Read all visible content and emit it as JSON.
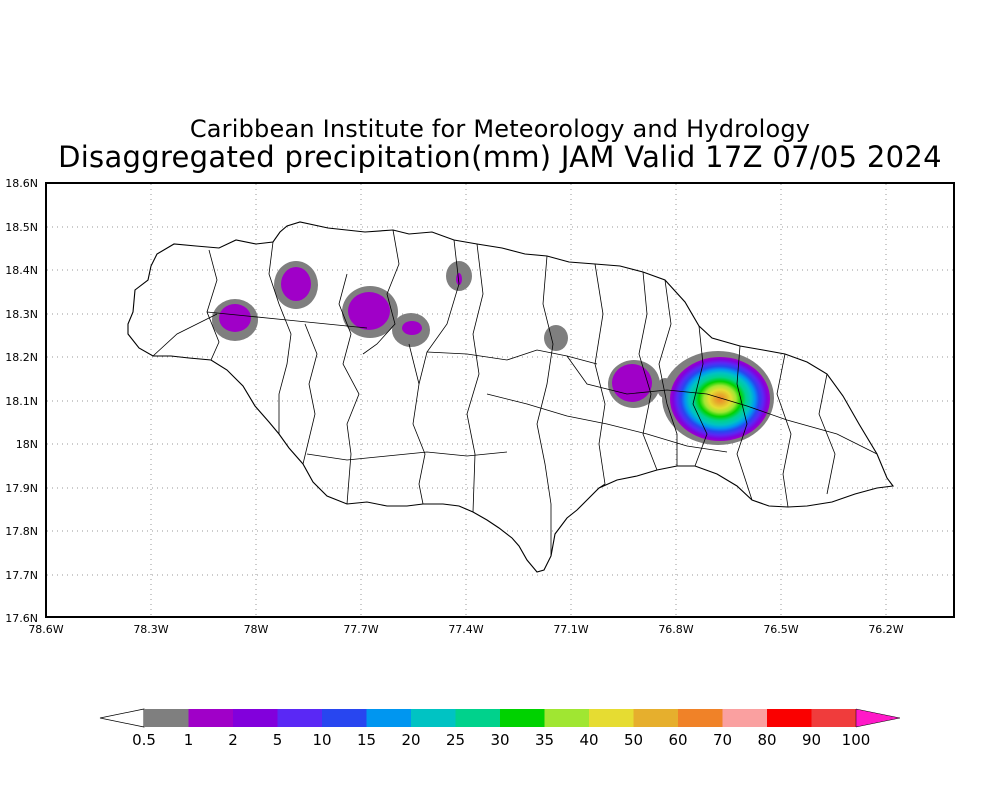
{
  "header": {
    "line1": "Caribbean Institute for Meteorology and Hydrology",
    "line2": "Disaggregated precipitation(mm) JAM Valid 17Z 07/05 2024"
  },
  "axes": {
    "y_ticks": [
      "18.6N",
      "18.5N",
      "18.4N",
      "18.3N",
      "18.2N",
      "18.1N",
      "18N",
      "17.9N",
      "17.8N",
      "17.7N",
      "17.6N"
    ],
    "x_ticks": [
      "78.6W",
      "78.3W",
      "78W",
      "77.7W",
      "77.4W",
      "77.1W",
      "76.8W",
      "76.5W",
      "76.2W"
    ],
    "lon_range": [
      -78.6,
      -76.0
    ],
    "lat_range": [
      17.6,
      18.6
    ],
    "grid": "dotted"
  },
  "legend": {
    "labels": [
      "0.5",
      "1",
      "2",
      "5",
      "10",
      "15",
      "20",
      "25",
      "30",
      "35",
      "40",
      "50",
      "60",
      "70",
      "80",
      "90",
      "100"
    ],
    "colors": [
      "#7f7f7f",
      "#a000c8",
      "#8200dc",
      "#5a28f5",
      "#2846f0",
      "#0096f0",
      "#00c3c3",
      "#00d28c",
      "#00d200",
      "#a0e632",
      "#e6dc32",
      "#e6af2d",
      "#f08228",
      "#faa0a0",
      "#fa0000",
      "#f03c3c"
    ],
    "under_color": "#ffffff",
    "over_color": "#ff19c8"
  },
  "map": {
    "region": "Jamaica",
    "precip_cells": [
      {
        "lon": -78.06,
        "lat": 18.29,
        "max_mm": 2
      },
      {
        "lon": -77.87,
        "lat": 18.38,
        "max_mm": 2
      },
      {
        "lon": -77.68,
        "lat": 18.3,
        "max_mm": 2
      },
      {
        "lon": -77.55,
        "lat": 18.27,
        "max_mm": 1
      },
      {
        "lon": -77.4,
        "lat": 18.39,
        "max_mm": 1
      },
      {
        "lon": -77.1,
        "lat": 18.25,
        "max_mm": 0.5
      },
      {
        "lon": -76.92,
        "lat": 18.14,
        "max_mm": 2
      },
      {
        "lon": -76.68,
        "lat": 18.11,
        "max_mm": 60
      }
    ]
  }
}
